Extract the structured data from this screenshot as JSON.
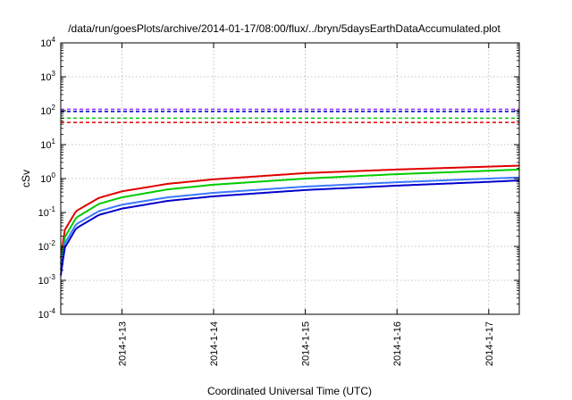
{
  "chart_data": {
    "type": "line",
    "title": "/data/run/goesPlots/archive/2014-01-17/08:00/flux/../bryn/5daysEarthDataAccumulated.plot",
    "xlabel": "Coordinated Universal Time (UTC)",
    "ylabel": "cSv",
    "y_scale": "log",
    "ylim": [
      0.0001,
      10000
    ],
    "y_ticks": [
      {
        "base": "10",
        "exp": "-4",
        "value": 0.0001
      },
      {
        "base": "10",
        "exp": "-3",
        "value": 0.001
      },
      {
        "base": "10",
        "exp": "-2",
        "value": 0.01
      },
      {
        "base": "10",
        "exp": "-1",
        "value": 0.1
      },
      {
        "base": "10",
        "exp": "0",
        "value": 1
      },
      {
        "base": "10",
        "exp": "1",
        "value": 10
      },
      {
        "base": "10",
        "exp": "2",
        "value": 100
      },
      {
        "base": "10",
        "exp": "3",
        "value": 1000
      },
      {
        "base": "10",
        "exp": "4",
        "value": 10000
      }
    ],
    "xlim": [
      "2014-01-12 08:00",
      "2014-01-17 08:00"
    ],
    "x_ticks": [
      "2014-1-13",
      "2014-1-14",
      "2014-1-15",
      "2014-1-16",
      "2014-1-17"
    ],
    "grid": true,
    "series": [
      {
        "style": "solid",
        "color": "#e00000",
        "x": [
          "2014-01-12 08:00",
          "2014-01-12 09:00",
          "2014-01-12 12:00",
          "2014-01-12 18:00",
          "2014-01-13 00:00",
          "2014-01-13 12:00",
          "2014-01-14 00:00",
          "2014-01-15 00:00",
          "2014-01-16 00:00",
          "2014-01-17 00:00",
          "2014-01-17 08:00"
        ],
        "values": [
          0.0045,
          0.03,
          0.11,
          0.27,
          0.42,
          0.7,
          0.95,
          1.45,
          1.85,
          2.25,
          2.4
        ]
      },
      {
        "style": "solid",
        "color": "#00cc00",
        "x": [
          "2014-01-12 08:00",
          "2014-01-12 09:00",
          "2014-01-12 12:00",
          "2014-01-12 18:00",
          "2014-01-13 00:00",
          "2014-01-13 12:00",
          "2014-01-14 00:00",
          "2014-01-15 00:00",
          "2014-01-16 00:00",
          "2014-01-17 00:00",
          "2014-01-17 08:00"
        ],
        "values": [
          0.003,
          0.018,
          0.07,
          0.18,
          0.28,
          0.48,
          0.66,
          1.0,
          1.35,
          1.7,
          1.85
        ]
      },
      {
        "style": "solid",
        "color": "#3c78ff",
        "x": [
          "2014-01-12 08:00",
          "2014-01-12 09:00",
          "2014-01-12 12:00",
          "2014-01-12 18:00",
          "2014-01-13 00:00",
          "2014-01-13 12:00",
          "2014-01-14 00:00",
          "2014-01-15 00:00",
          "2014-01-16 00:00",
          "2014-01-17 00:00",
          "2014-01-17 08:00"
        ],
        "values": [
          0.002,
          0.012,
          0.045,
          0.11,
          0.17,
          0.28,
          0.38,
          0.58,
          0.78,
          1.0,
          1.08
        ]
      },
      {
        "style": "solid",
        "color": "#0000cc",
        "x": [
          "2014-01-12 08:00",
          "2014-01-12 09:00",
          "2014-01-12 12:00",
          "2014-01-12 18:00",
          "2014-01-13 00:00",
          "2014-01-13 12:00",
          "2014-01-14 00:00",
          "2014-01-15 00:00",
          "2014-01-16 00:00",
          "2014-01-17 00:00",
          "2014-01-17 08:00"
        ],
        "values": [
          0.0014,
          0.009,
          0.034,
          0.085,
          0.13,
          0.22,
          0.3,
          0.46,
          0.62,
          0.8,
          0.88
        ]
      },
      {
        "style": "dashed",
        "color": "#e00000",
        "value": 45
      },
      {
        "style": "dashed",
        "color": "#00cc00",
        "value": 60
      },
      {
        "style": "dashed",
        "color": "#0000cc",
        "value": 95
      },
      {
        "style": "dashed",
        "color": "#9933ff",
        "value": 110
      }
    ]
  }
}
